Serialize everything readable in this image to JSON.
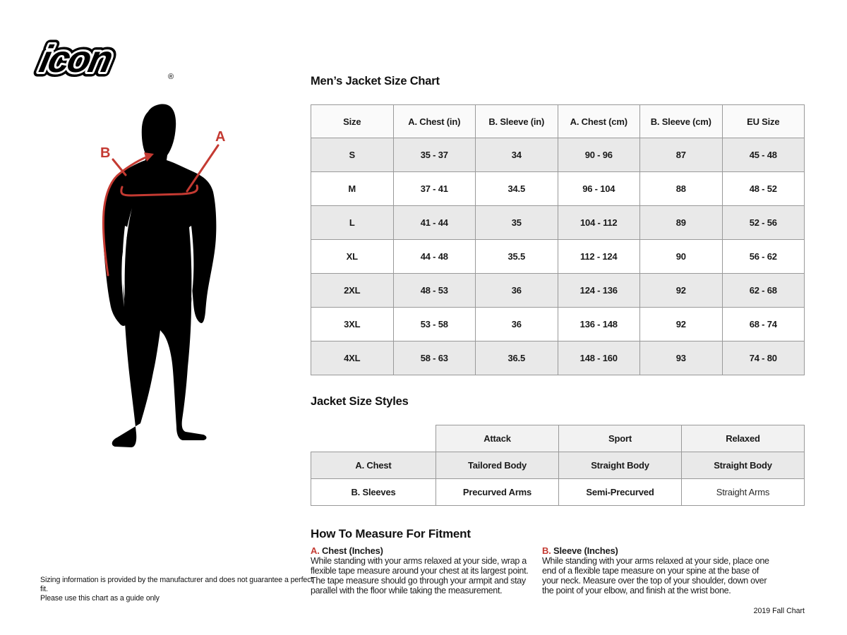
{
  "brand": {
    "logo_text": "icon",
    "registered_mark": "®"
  },
  "figure": {
    "label_a": "A",
    "label_b": "B",
    "silhouette_icon": "standing-man-silhouette",
    "line_color": "#c43a32"
  },
  "size_chart": {
    "title": "Men’s Jacket Size Chart",
    "columns": [
      "Size",
      "A. Chest (in)",
      "B. Sleeve (in)",
      "A. Chest (cm)",
      "B. Sleeve (cm)",
      "EU Size"
    ],
    "rows": [
      [
        "S",
        "35 - 37",
        "34",
        "90 - 96",
        "87",
        "45 - 48"
      ],
      [
        "M",
        "37 - 41",
        "34.5",
        "96 - 104",
        "88",
        "48 - 52"
      ],
      [
        "L",
        "41 - 44",
        "35",
        "104 - 112",
        "89",
        "52 - 56"
      ],
      [
        "XL",
        "44 - 48",
        "35.5",
        "112 - 124",
        "90",
        "56 - 62"
      ],
      [
        "2XL",
        "48 - 53",
        "36",
        "124 - 136",
        "92",
        "62 - 68"
      ],
      [
        "3XL",
        "53 - 58",
        "36",
        "136 - 148",
        "92",
        "68 - 74"
      ],
      [
        "4XL",
        "58 - 63",
        "36.5",
        "148 - 160",
        "93",
        "74 - 80"
      ]
    ]
  },
  "styles_chart": {
    "title": "Jacket Size Styles",
    "columns": [
      "Attack",
      "Sport",
      "Relaxed"
    ],
    "rows": [
      {
        "label": "A. Chest",
        "cells": [
          "Tailored Body",
          "Straight Body",
          "Straight Body"
        ]
      },
      {
        "label": "B. Sleeves",
        "cells": [
          "Precurved Arms",
          "Semi-Precurved",
          "Straight Arms"
        ]
      }
    ]
  },
  "measure": {
    "title": "How To Measure For Fitment",
    "sections": [
      {
        "letter": "A.",
        "heading": "Chest (Inches)",
        "body": "While standing with your arms relaxed at your side, wrap a flexible tape measure around your chest at its largest point. The tape measure should go through your armpit and stay parallel with the floor while taking the measurement."
      },
      {
        "letter": "B.",
        "heading": "Sleeve (Inches)",
        "body": "While standing with your arms relaxed at your side, place one end of a flexible tape measure on your spine at the base of your neck. Measure over the top of your shoulder, down over the point of your elbow, and finish at the wrist bone."
      }
    ]
  },
  "footer": {
    "disclaimer_line1": "Sizing information is provided by the manufacturer and does not guarantee a perfect fit.",
    "disclaimer_line2": "Please use this chart as a guide only",
    "version": "2019 Fall Chart"
  },
  "colors": {
    "accent_red": "#c43a32",
    "table_border": "#999999",
    "row_gray": "#e9e9e9",
    "header_bg": "#fafafa",
    "text": "#1a1a1a"
  }
}
